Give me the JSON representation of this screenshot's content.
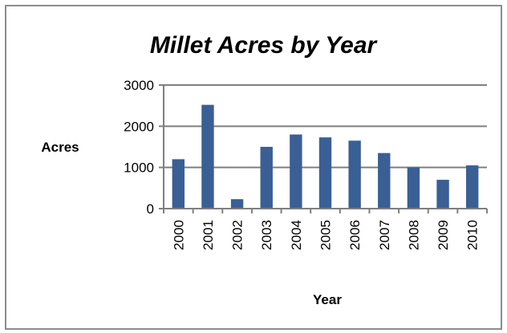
{
  "chart_data": {
    "type": "bar",
    "title": "Millet Acres by Year",
    "xlabel": "Year",
    "ylabel": "Acres",
    "categories": [
      "2000",
      "2001",
      "2002",
      "2003",
      "2004",
      "2005",
      "2006",
      "2007",
      "2008",
      "2009",
      "2010"
    ],
    "values": [
      1200,
      2520,
      230,
      1500,
      1800,
      1730,
      1650,
      1350,
      1000,
      700,
      1050
    ],
    "ylim": [
      0,
      3000
    ],
    "yticks": [
      "0",
      "1000",
      "2000",
      "3000"
    ],
    "grid": true,
    "legend": "none",
    "bar_color": "#3a5f95",
    "grid_color": "#7f7f7f"
  }
}
